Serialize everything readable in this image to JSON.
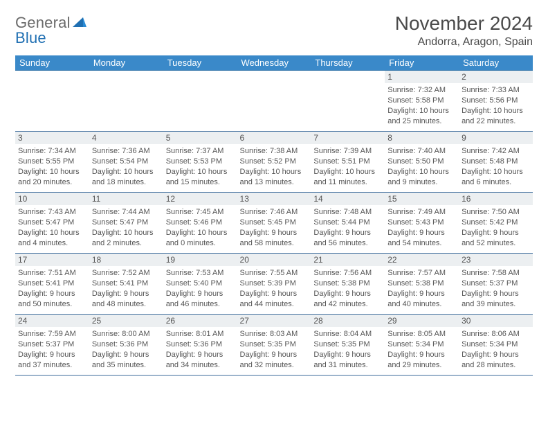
{
  "logo": {
    "word1": "General",
    "word2": "Blue"
  },
  "title": "November 2024",
  "location": "Andorra, Aragon, Spain",
  "colors": {
    "header_bg": "#3a89c9",
    "header_text": "#ffffff",
    "daynum_bg": "#eceff1",
    "cell_border": "#3a6a9a",
    "text": "#555555",
    "logo_gray": "#6a6a6a",
    "logo_blue": "#1f6fb2"
  },
  "weekdays": [
    "Sunday",
    "Monday",
    "Tuesday",
    "Wednesday",
    "Thursday",
    "Friday",
    "Saturday"
  ],
  "weeks": [
    [
      null,
      null,
      null,
      null,
      null,
      {
        "n": "1",
        "sr": "Sunrise: 7:32 AM",
        "ss": "Sunset: 5:58 PM",
        "d1": "Daylight: 10 hours",
        "d2": "and 25 minutes."
      },
      {
        "n": "2",
        "sr": "Sunrise: 7:33 AM",
        "ss": "Sunset: 5:56 PM",
        "d1": "Daylight: 10 hours",
        "d2": "and 22 minutes."
      }
    ],
    [
      {
        "n": "3",
        "sr": "Sunrise: 7:34 AM",
        "ss": "Sunset: 5:55 PM",
        "d1": "Daylight: 10 hours",
        "d2": "and 20 minutes."
      },
      {
        "n": "4",
        "sr": "Sunrise: 7:36 AM",
        "ss": "Sunset: 5:54 PM",
        "d1": "Daylight: 10 hours",
        "d2": "and 18 minutes."
      },
      {
        "n": "5",
        "sr": "Sunrise: 7:37 AM",
        "ss": "Sunset: 5:53 PM",
        "d1": "Daylight: 10 hours",
        "d2": "and 15 minutes."
      },
      {
        "n": "6",
        "sr": "Sunrise: 7:38 AM",
        "ss": "Sunset: 5:52 PM",
        "d1": "Daylight: 10 hours",
        "d2": "and 13 minutes."
      },
      {
        "n": "7",
        "sr": "Sunrise: 7:39 AM",
        "ss": "Sunset: 5:51 PM",
        "d1": "Daylight: 10 hours",
        "d2": "and 11 minutes."
      },
      {
        "n": "8",
        "sr": "Sunrise: 7:40 AM",
        "ss": "Sunset: 5:50 PM",
        "d1": "Daylight: 10 hours",
        "d2": "and 9 minutes."
      },
      {
        "n": "9",
        "sr": "Sunrise: 7:42 AM",
        "ss": "Sunset: 5:48 PM",
        "d1": "Daylight: 10 hours",
        "d2": "and 6 minutes."
      }
    ],
    [
      {
        "n": "10",
        "sr": "Sunrise: 7:43 AM",
        "ss": "Sunset: 5:47 PM",
        "d1": "Daylight: 10 hours",
        "d2": "and 4 minutes."
      },
      {
        "n": "11",
        "sr": "Sunrise: 7:44 AM",
        "ss": "Sunset: 5:47 PM",
        "d1": "Daylight: 10 hours",
        "d2": "and 2 minutes."
      },
      {
        "n": "12",
        "sr": "Sunrise: 7:45 AM",
        "ss": "Sunset: 5:46 PM",
        "d1": "Daylight: 10 hours",
        "d2": "and 0 minutes."
      },
      {
        "n": "13",
        "sr": "Sunrise: 7:46 AM",
        "ss": "Sunset: 5:45 PM",
        "d1": "Daylight: 9 hours",
        "d2": "and 58 minutes."
      },
      {
        "n": "14",
        "sr": "Sunrise: 7:48 AM",
        "ss": "Sunset: 5:44 PM",
        "d1": "Daylight: 9 hours",
        "d2": "and 56 minutes."
      },
      {
        "n": "15",
        "sr": "Sunrise: 7:49 AM",
        "ss": "Sunset: 5:43 PM",
        "d1": "Daylight: 9 hours",
        "d2": "and 54 minutes."
      },
      {
        "n": "16",
        "sr": "Sunrise: 7:50 AM",
        "ss": "Sunset: 5:42 PM",
        "d1": "Daylight: 9 hours",
        "d2": "and 52 minutes."
      }
    ],
    [
      {
        "n": "17",
        "sr": "Sunrise: 7:51 AM",
        "ss": "Sunset: 5:41 PM",
        "d1": "Daylight: 9 hours",
        "d2": "and 50 minutes."
      },
      {
        "n": "18",
        "sr": "Sunrise: 7:52 AM",
        "ss": "Sunset: 5:41 PM",
        "d1": "Daylight: 9 hours",
        "d2": "and 48 minutes."
      },
      {
        "n": "19",
        "sr": "Sunrise: 7:53 AM",
        "ss": "Sunset: 5:40 PM",
        "d1": "Daylight: 9 hours",
        "d2": "and 46 minutes."
      },
      {
        "n": "20",
        "sr": "Sunrise: 7:55 AM",
        "ss": "Sunset: 5:39 PM",
        "d1": "Daylight: 9 hours",
        "d2": "and 44 minutes."
      },
      {
        "n": "21",
        "sr": "Sunrise: 7:56 AM",
        "ss": "Sunset: 5:38 PM",
        "d1": "Daylight: 9 hours",
        "d2": "and 42 minutes."
      },
      {
        "n": "22",
        "sr": "Sunrise: 7:57 AM",
        "ss": "Sunset: 5:38 PM",
        "d1": "Daylight: 9 hours",
        "d2": "and 40 minutes."
      },
      {
        "n": "23",
        "sr": "Sunrise: 7:58 AM",
        "ss": "Sunset: 5:37 PM",
        "d1": "Daylight: 9 hours",
        "d2": "and 39 minutes."
      }
    ],
    [
      {
        "n": "24",
        "sr": "Sunrise: 7:59 AM",
        "ss": "Sunset: 5:37 PM",
        "d1": "Daylight: 9 hours",
        "d2": "and 37 minutes."
      },
      {
        "n": "25",
        "sr": "Sunrise: 8:00 AM",
        "ss": "Sunset: 5:36 PM",
        "d1": "Daylight: 9 hours",
        "d2": "and 35 minutes."
      },
      {
        "n": "26",
        "sr": "Sunrise: 8:01 AM",
        "ss": "Sunset: 5:36 PM",
        "d1": "Daylight: 9 hours",
        "d2": "and 34 minutes."
      },
      {
        "n": "27",
        "sr": "Sunrise: 8:03 AM",
        "ss": "Sunset: 5:35 PM",
        "d1": "Daylight: 9 hours",
        "d2": "and 32 minutes."
      },
      {
        "n": "28",
        "sr": "Sunrise: 8:04 AM",
        "ss": "Sunset: 5:35 PM",
        "d1": "Daylight: 9 hours",
        "d2": "and 31 minutes."
      },
      {
        "n": "29",
        "sr": "Sunrise: 8:05 AM",
        "ss": "Sunset: 5:34 PM",
        "d1": "Daylight: 9 hours",
        "d2": "and 29 minutes."
      },
      {
        "n": "30",
        "sr": "Sunrise: 8:06 AM",
        "ss": "Sunset: 5:34 PM",
        "d1": "Daylight: 9 hours",
        "d2": "and 28 minutes."
      }
    ]
  ]
}
